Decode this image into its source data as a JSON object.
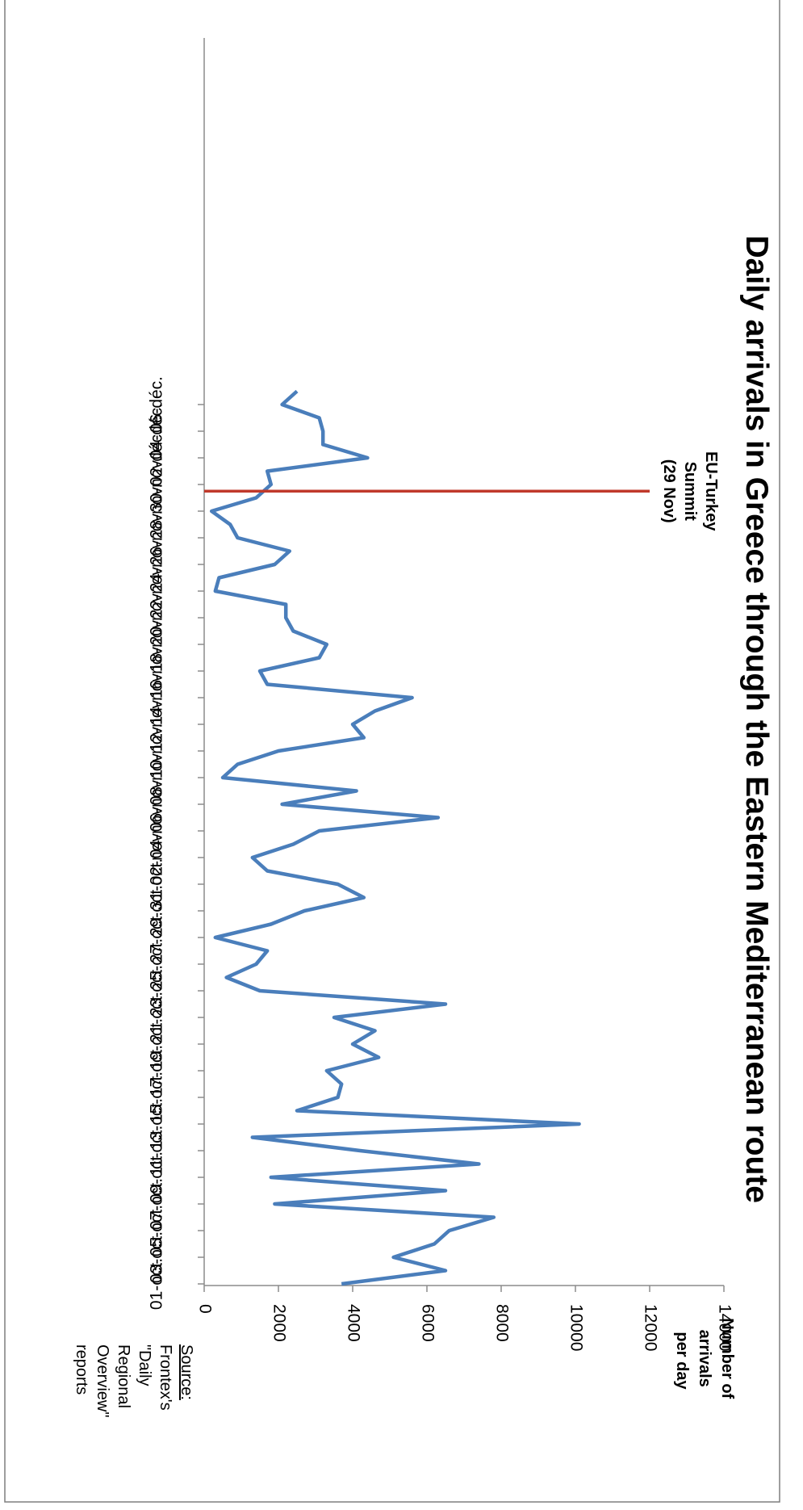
{
  "chart_data": {
    "type": "line",
    "title": "Daily arrivals in Greece through the Eastern Mediterranean route",
    "ylabel": "Number of arrivals per day",
    "ylabel_lines": [
      "Number of",
      "arrivals",
      "per day"
    ],
    "ylim": [
      0,
      14000
    ],
    "yticks": [
      0,
      2000,
      4000,
      6000,
      8000,
      10000,
      12000,
      14000
    ],
    "ytick_labels": [
      "0",
      "2000",
      "4000",
      "6000",
      "8000",
      "10000",
      "12000",
      "14000"
    ],
    "xtick_labels": [
      "01-oct.",
      "03-oct.",
      "05-oct.",
      "07-oct.",
      "09-oct.",
      "11-oct.",
      "13-oct.",
      "15-oct.",
      "17-oct.",
      "19-oct.",
      "21-oct.",
      "23-oct.",
      "25-oct.",
      "27-oct.",
      "29-oct.",
      "31-oct.",
      "02-nov.",
      "04-nov.",
      "06-nov.",
      "08-nov.",
      "10-nov.",
      "12-nov.",
      "14-nov.",
      "16-nov.",
      "18-nov.",
      "20-nov.",
      "22-nov.",
      "24-nov.",
      "26-nov.",
      "28-nov.",
      "30-nov.",
      "02-déc.",
      "04-déc.",
      "06-déc."
    ],
    "series": [
      {
        "color": "#4a7ebb",
        "values": [
          3700,
          6500,
          5100,
          6200,
          6600,
          7800,
          1900,
          6500,
          1800,
          7400,
          4200,
          1300,
          10100,
          2500,
          3600,
          3700,
          3300,
          4700,
          4000,
          4600,
          3500,
          6500,
          1500,
          600,
          1400,
          1700,
          300,
          1800,
          2700,
          4300,
          3600,
          1700,
          1300,
          2400,
          3100,
          6300,
          2100,
          4100,
          500,
          900,
          2000,
          4300,
          4000,
          4600,
          5600,
          1700,
          1500,
          3100,
          3300,
          2400,
          2200,
          2200,
          300,
          400,
          1900,
          2300,
          900,
          700,
          200,
          1400,
          1800,
          1700,
          4400,
          3200,
          3200,
          3100,
          2100,
          2500
        ]
      }
    ],
    "annotations": [
      {
        "text_lines": [
          "EU-Turkey",
          "Summit",
          "(29 Nov)"
        ],
        "day_index": 59.5,
        "y_from": 0,
        "y_to": 12000,
        "color": "#c0392b"
      }
    ],
    "source": {
      "underlined": "Source:",
      "lines": [
        "Frontex's",
        "\"Daily",
        "Regional",
        "Overview\"",
        "reports"
      ]
    },
    "grid": false,
    "legend": "none"
  }
}
